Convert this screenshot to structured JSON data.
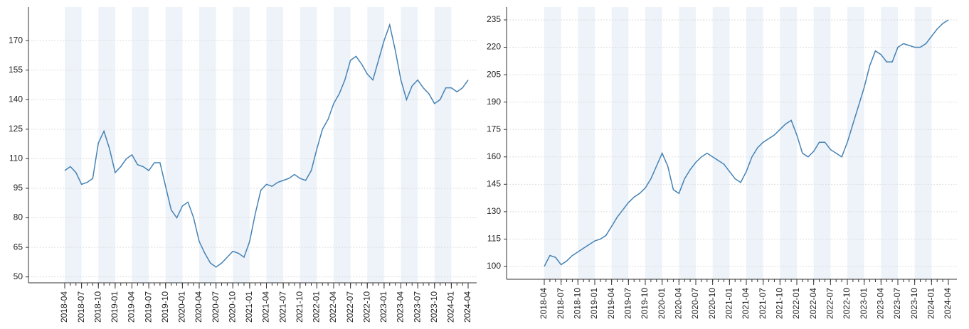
{
  "chart_data": [
    {
      "type": "line",
      "color": "#4682b4",
      "grid": true,
      "shade": "alternate-quarters",
      "x": [
        "2018-04",
        "2018-05",
        "2018-06",
        "2018-07",
        "2018-08",
        "2018-09",
        "2018-10",
        "2018-11",
        "2018-12",
        "2019-01",
        "2019-02",
        "2019-03",
        "2019-04",
        "2019-05",
        "2019-06",
        "2019-07",
        "2019-08",
        "2019-09",
        "2019-10",
        "2019-11",
        "2019-12",
        "2020-01",
        "2020-02",
        "2020-03",
        "2020-04",
        "2020-05",
        "2020-06",
        "2020-07",
        "2020-08",
        "2020-09",
        "2020-10",
        "2020-11",
        "2020-12",
        "2021-01",
        "2021-02",
        "2021-03",
        "2021-04",
        "2021-05",
        "2021-06",
        "2021-07",
        "2021-08",
        "2021-09",
        "2021-10",
        "2021-11",
        "2021-12",
        "2022-01",
        "2022-02",
        "2022-03",
        "2022-04",
        "2022-05",
        "2022-06",
        "2022-07",
        "2022-08",
        "2022-09",
        "2022-10",
        "2022-11",
        "2022-12",
        "2023-01",
        "2023-02",
        "2023-03",
        "2023-04",
        "2023-05",
        "2023-06",
        "2023-07",
        "2023-08",
        "2023-09",
        "2023-10",
        "2023-11",
        "2023-12",
        "2024-01",
        "2024-02",
        "2024-03",
        "2024-04"
      ],
      "values": [
        104,
        106,
        103,
        97,
        98,
        100,
        118,
        124,
        115,
        103,
        106,
        110,
        112,
        107,
        106,
        104,
        108,
        108,
        96,
        84,
        80,
        86,
        88,
        80,
        68,
        62,
        57,
        55,
        57,
        60,
        63,
        62,
        60,
        68,
        82,
        94,
        97,
        96,
        98,
        99,
        100,
        102,
        100,
        99,
        104,
        115,
        125,
        130,
        138,
        143,
        150,
        160,
        162,
        158,
        153,
        150,
        160,
        170,
        178,
        165,
        150,
        140,
        147,
        150,
        146,
        143,
        138,
        140,
        146,
        146,
        144,
        146,
        150
      ],
      "xticks": [
        "2018-04",
        "2018-07",
        "2018-10",
        "2019-01",
        "2019-04",
        "2019-07",
        "2019-10",
        "2020-01",
        "2020-04",
        "2020-07",
        "2020-10",
        "2021-01",
        "2021-04",
        "2021-07",
        "2021-10",
        "2022-01",
        "2022-04",
        "2022-07",
        "2022-10",
        "2023-01",
        "2023-04",
        "2023-07",
        "2023-10",
        "2024-01",
        "2024-04"
      ],
      "ylim": [
        47,
        187
      ],
      "yticks": [
        50,
        65,
        80,
        95,
        110,
        125,
        140,
        155,
        170
      ]
    },
    {
      "type": "line",
      "color": "#4682b4",
      "grid": true,
      "shade": "alternate-quarters",
      "x": [
        "2018-04",
        "2018-05",
        "2018-06",
        "2018-07",
        "2018-08",
        "2018-09",
        "2018-10",
        "2018-11",
        "2018-12",
        "2019-01",
        "2019-02",
        "2019-03",
        "2019-04",
        "2019-05",
        "2019-06",
        "2019-07",
        "2019-08",
        "2019-09",
        "2019-10",
        "2019-11",
        "2019-12",
        "2020-01",
        "2020-02",
        "2020-03",
        "2020-04",
        "2020-05",
        "2020-06",
        "2020-07",
        "2020-08",
        "2020-09",
        "2020-10",
        "2020-11",
        "2020-12",
        "2021-01",
        "2021-02",
        "2021-03",
        "2021-04",
        "2021-05",
        "2021-06",
        "2021-07",
        "2021-08",
        "2021-09",
        "2021-10",
        "2021-11",
        "2021-12",
        "2022-01",
        "2022-02",
        "2022-03",
        "2022-04",
        "2022-05",
        "2022-06",
        "2022-07",
        "2022-08",
        "2022-09",
        "2022-10",
        "2022-11",
        "2022-12",
        "2023-01",
        "2023-02",
        "2023-03",
        "2023-04",
        "2023-05",
        "2023-06",
        "2023-07",
        "2023-08",
        "2023-09",
        "2023-10",
        "2023-11",
        "2023-12",
        "2024-01",
        "2024-02",
        "2024-03",
        "2024-04"
      ],
      "values": [
        100,
        106,
        105,
        101,
        103,
        106,
        108,
        110,
        112,
        114,
        115,
        117,
        122,
        127,
        131,
        135,
        138,
        140,
        143,
        148,
        155,
        162,
        155,
        142,
        140,
        148,
        153,
        157,
        160,
        162,
        160,
        158,
        156,
        152,
        148,
        146,
        152,
        160,
        165,
        168,
        170,
        172,
        175,
        178,
        180,
        172,
        162,
        160,
        163,
        168,
        168,
        164,
        162,
        160,
        168,
        178,
        188,
        198,
        210,
        218,
        216,
        212,
        212,
        220,
        222,
        221,
        220,
        220,
        222,
        226,
        230,
        233,
        235
      ],
      "xticks": [
        "2018-04",
        "2018-07",
        "2018-10",
        "2019-01",
        "2019-04",
        "2019-07",
        "2019-10",
        "2020-01",
        "2020-04",
        "2020-07",
        "2020-10",
        "2021-01",
        "2021-04",
        "2021-07",
        "2021-10",
        "2022-01",
        "2022-04",
        "2022-07",
        "2022-10",
        "2023-01",
        "2023-04",
        "2023-07",
        "2023-10",
        "2024-01",
        "2024-04"
      ],
      "ylim": [
        93,
        242
      ],
      "yticks": [
        100,
        115,
        130,
        145,
        160,
        175,
        190,
        205,
        220,
        235
      ]
    }
  ]
}
